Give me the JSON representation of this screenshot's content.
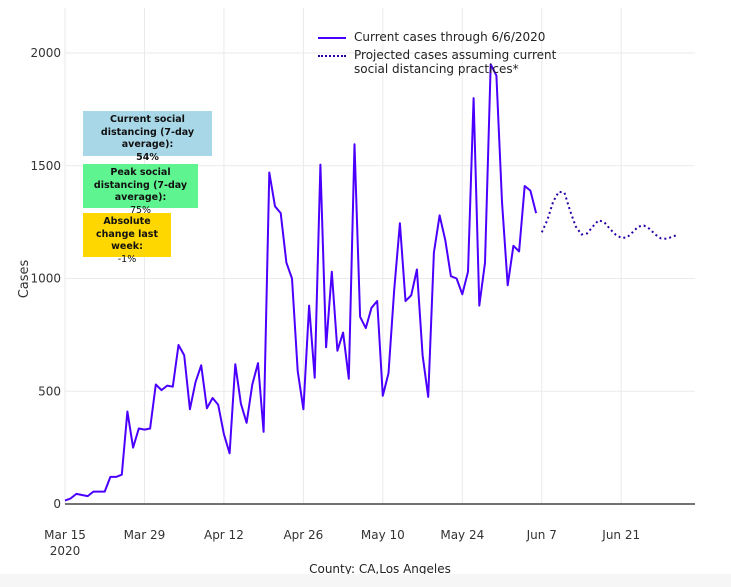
{
  "chart_data": {
    "type": "line",
    "title": "",
    "xlabel": "County: CA,Los Angeles",
    "ylabel": "Cases",
    "ylim": [
      0,
      2150
    ],
    "xlim_days_from_start": [
      0,
      111
    ],
    "start_date": "2020-03-15",
    "y_ticks": [
      0,
      500,
      1000,
      1500,
      2000
    ],
    "y_tick_labels": [
      "0",
      "500",
      "1000",
      "1500",
      "2000"
    ],
    "x_ticks_days": [
      0,
      14,
      28,
      42,
      56,
      70,
      84,
      98
    ],
    "x_tick_labels": [
      "Mar 15",
      "Mar 29",
      "Apr 12",
      "Apr 26",
      "May 10",
      "May 24",
      "Jun 7",
      "Jun 21"
    ],
    "x_tick_sublabel": "2020",
    "grid": true,
    "legend_position": "top-center",
    "series": [
      {
        "name": "Current cases through 6/6/2020",
        "style": "solid",
        "color": "#4b00ff",
        "start_day": 0,
        "values": [
          15,
          25,
          45,
          40,
          35,
          55,
          55,
          55,
          120,
          120,
          130,
          410,
          250,
          335,
          330,
          335,
          530,
          505,
          525,
          520,
          705,
          660,
          420,
          540,
          615,
          425,
          470,
          440,
          310,
          225,
          620,
          445,
          360,
          530,
          625,
          320,
          1470,
          1320,
          1290,
          1070,
          1000,
          590,
          420,
          880,
          560,
          1505,
          695,
          1030,
          680,
          760,
          555,
          1595,
          830,
          780,
          870,
          900,
          480,
          580,
          950,
          1245,
          900,
          925,
          1040,
          660,
          475,
          1115,
          1280,
          1170,
          1010,
          1000,
          930,
          1030,
          1800,
          880,
          1070,
          1950,
          1900,
          1340,
          970,
          1145,
          1120,
          1410,
          1390,
          1290
        ]
      },
      {
        "name": "Projected cases assuming current social distancing practices*",
        "style": "dotted",
        "color": "#2a00a6",
        "start_day": 84,
        "values": [
          1205,
          1260,
          1340,
          1385,
          1380,
          1300,
          1230,
          1195,
          1200,
          1230,
          1258,
          1250,
          1220,
          1195,
          1180,
          1182,
          1205,
          1230,
          1235,
          1220,
          1195,
          1178,
          1176,
          1185,
          1195
        ]
      }
    ],
    "annotations": [
      {
        "title": "Current social distancing (7-day average):",
        "value": "54%",
        "color": "#a8d8e8"
      },
      {
        "title": "Peak social distancing (7-day average):",
        "value": "75%",
        "color": "#5ef48f"
      },
      {
        "title": "Absolute change last week:",
        "value": "-1%",
        "color": "#ffd700"
      }
    ]
  }
}
